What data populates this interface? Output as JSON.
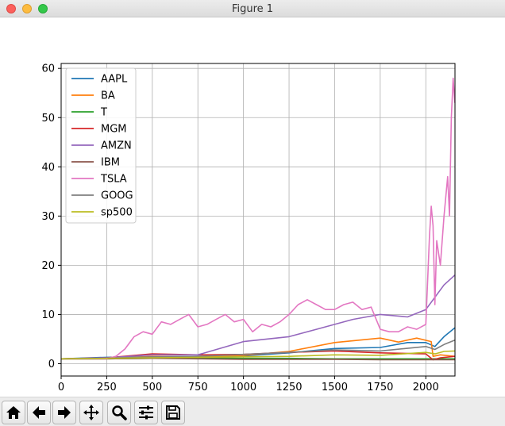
{
  "window": {
    "title": "Figure 1"
  },
  "toolbar": {
    "buttons": [
      {
        "icon": "home-icon"
      },
      {
        "icon": "back-arrow-icon"
      },
      {
        "icon": "forward-arrow-icon"
      },
      {
        "icon": "pan-move-icon"
      },
      {
        "icon": "zoom-magnifier-icon"
      },
      {
        "icon": "configure-subplots-icon"
      },
      {
        "icon": "save-floppy-icon"
      }
    ]
  },
  "chart_data": {
    "type": "line",
    "title": "",
    "xlabel": "",
    "ylabel": "",
    "xlim": [
      0,
      2160
    ],
    "ylim": [
      -2.5,
      61
    ],
    "xticks": [
      0,
      250,
      500,
      750,
      1000,
      1250,
      1500,
      1750,
      2000
    ],
    "yticks": [
      0,
      10,
      20,
      30,
      40,
      50,
      60
    ],
    "grid": true,
    "legend_position": "upper-left",
    "series": [
      {
        "name": "AAPL",
        "color": "#1f77b4",
        "x": [
          0,
          250,
          500,
          750,
          1000,
          1250,
          1500,
          1750,
          1900,
          2000,
          2050,
          2100,
          2159
        ],
        "y": [
          1.0,
          1.3,
          1.4,
          1.5,
          1.6,
          2.2,
          3.1,
          3.3,
          4.3,
          4.3,
          3.5,
          5.5,
          7.3
        ]
      },
      {
        "name": "BA",
        "color": "#ff7f0e",
        "x": [
          0,
          250,
          500,
          750,
          1000,
          1250,
          1500,
          1750,
          1850,
          1950,
          2030,
          2040,
          2080,
          2159
        ],
        "y": [
          1.0,
          1.0,
          1.5,
          1.4,
          1.7,
          2.5,
          4.3,
          5.2,
          4.4,
          5.2,
          4.5,
          1.5,
          1.8,
          1.5
        ]
      },
      {
        "name": "T",
        "color": "#2ca02c",
        "x": [
          0,
          250,
          500,
          750,
          1000,
          1250,
          1500,
          1750,
          2000,
          2159
        ],
        "y": [
          1.0,
          1.0,
          1.1,
          1.2,
          1.1,
          1.1,
          1.0,
          1.0,
          1.0,
          1.0
        ]
      },
      {
        "name": "MGM",
        "color": "#d62728",
        "x": [
          0,
          250,
          500,
          750,
          1000,
          1250,
          1500,
          1750,
          2000,
          2040,
          2080,
          2159
        ],
        "y": [
          1.0,
          1.2,
          2.0,
          1.8,
          1.9,
          2.3,
          2.6,
          2.2,
          2.0,
          0.8,
          1.2,
          1.5
        ]
      },
      {
        "name": "AMZN",
        "color": "#9467bd",
        "x": [
          0,
          250,
          500,
          750,
          1000,
          1250,
          1400,
          1600,
          1750,
          1900,
          2000,
          2100,
          2159
        ],
        "y": [
          1.0,
          1.2,
          1.8,
          1.8,
          4.5,
          5.5,
          7.0,
          9.0,
          10.0,
          9.5,
          11.0,
          16.0,
          18.0
        ]
      },
      {
        "name": "IBM",
        "color": "#8c564b",
        "x": [
          0,
          250,
          500,
          750,
          1000,
          1250,
          1500,
          1750,
          2000,
          2159
        ],
        "y": [
          1.0,
          1.0,
          1.1,
          1.0,
          0.9,
          0.9,
          0.9,
          0.8,
          0.8,
          0.8
        ]
      },
      {
        "name": "TSLA",
        "color": "#e377c2",
        "x": [
          0,
          250,
          300,
          350,
          400,
          450,
          500,
          550,
          600,
          650,
          700,
          750,
          800,
          850,
          900,
          950,
          1000,
          1050,
          1100,
          1150,
          1200,
          1250,
          1300,
          1350,
          1400,
          1450,
          1500,
          1550,
          1600,
          1650,
          1700,
          1750,
          1800,
          1850,
          1900,
          1950,
          2000,
          2020,
          2030,
          2040,
          2050,
          2060,
          2080,
          2100,
          2120,
          2130,
          2140,
          2150,
          2159
        ],
        "y": [
          1.0,
          1.0,
          1.5,
          3.0,
          5.5,
          6.5,
          6.0,
          8.5,
          8.0,
          9.0,
          10.0,
          7.5,
          8.0,
          9.0,
          10.0,
          8.5,
          9.0,
          6.5,
          8.0,
          7.5,
          8.5,
          10.0,
          12.0,
          13.0,
          12.0,
          11.0,
          11.0,
          12.0,
          12.5,
          11.0,
          11.5,
          7.0,
          6.5,
          6.5,
          7.5,
          7.0,
          8.0,
          26.0,
          32.0,
          28.0,
          12.0,
          25.0,
          20.0,
          30.0,
          38.0,
          30.0,
          50.0,
          58.0,
          53.0
        ]
      },
      {
        "name": "GOOG",
        "color": "#7f7f7f",
        "x": [
          0,
          250,
          500,
          750,
          1000,
          1250,
          1500,
          1750,
          2000,
          2050,
          2100,
          2159
        ],
        "y": [
          1.0,
          1.1,
          1.4,
          1.5,
          1.9,
          2.3,
          2.8,
          2.6,
          3.5,
          2.9,
          3.9,
          4.8
        ]
      },
      {
        "name": "sp500",
        "color": "#bcbd22",
        "x": [
          0,
          250,
          500,
          750,
          1000,
          1250,
          1500,
          1750,
          2000,
          2050,
          2100,
          2159
        ],
        "y": [
          1.0,
          1.1,
          1.2,
          1.3,
          1.4,
          1.5,
          1.8,
          1.7,
          2.3,
          2.0,
          2.5,
          2.6
        ]
      }
    ]
  }
}
